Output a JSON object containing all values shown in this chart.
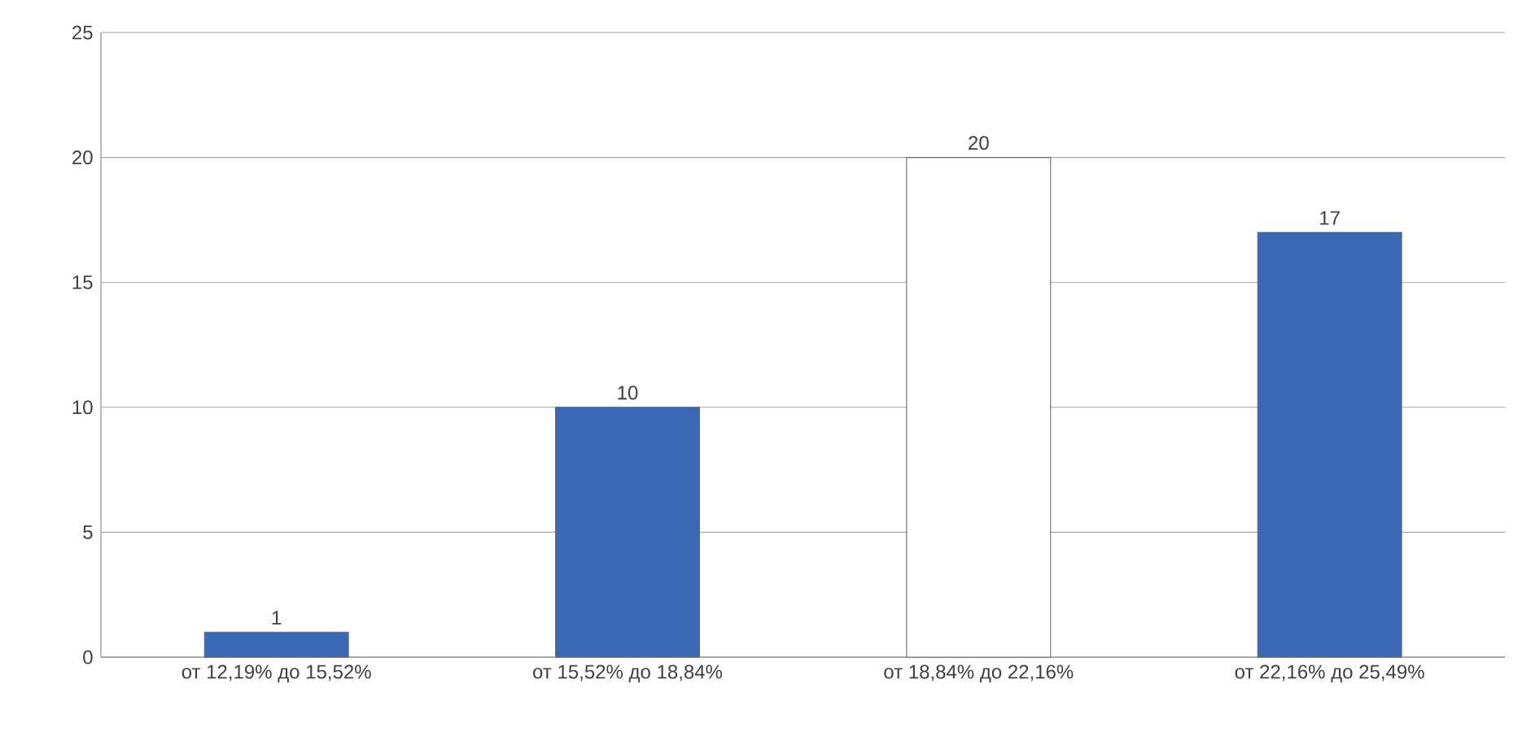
{
  "chart_data": {
    "type": "bar",
    "categories": [
      "от 12,19% до 15,52%",
      "от 15,52% до 18,84%",
      "от 18,84% до 22,16%",
      "от 22,16% до 25,49%"
    ],
    "values": [
      1,
      10,
      20,
      17
    ],
    "colors": [
      "#3b68b5",
      "#3b68b5",
      "#ffffff",
      "#3b68b5"
    ],
    "ylim": [
      0,
      25
    ],
    "yticks": [
      0,
      5,
      10,
      15,
      20,
      25
    ],
    "grid": "y",
    "data_labels": true
  }
}
